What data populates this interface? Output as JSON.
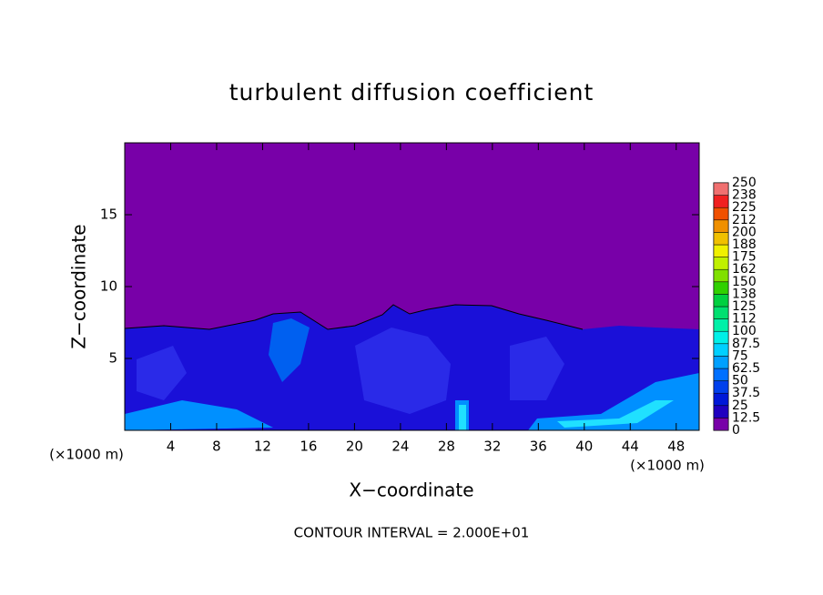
{
  "chart_data": {
    "type": "contour",
    "title": "turbulent diffusion coefficient",
    "x_label": "X−coordinate",
    "y_label": "Z−coordinate",
    "x_unit_label": "(×1000 m)",
    "y_unit_label": "(×1000 m)",
    "annotation": "CONTOUR INTERVAL = 2.000E+01",
    "xlim": [
      0,
      50
    ],
    "xticks": [
      4,
      8,
      12,
      16,
      20,
      24,
      28,
      32,
      36,
      40,
      44,
      48
    ],
    "ylim": [
      0,
      20
    ],
    "yticks": [
      5,
      10,
      15
    ],
    "colorbar": {
      "levels": [
        0,
        12.5,
        25,
        37.5,
        50,
        62.5,
        75,
        87.5,
        100,
        112,
        125,
        138,
        150,
        162,
        175,
        188,
        200,
        212,
        225,
        238,
        250
      ],
      "colors": [
        "#7800a8",
        "#2000c0",
        "#0018d8",
        "#0040ec",
        "#0070ff",
        "#00a0ff",
        "#00d0ff",
        "#00f0e8",
        "#00f0a8",
        "#00e070",
        "#00d040",
        "#30d000",
        "#80e000",
        "#c0f000",
        "#f0f000",
        "#f0c000",
        "#f09000",
        "#f05000",
        "#f02020",
        "#f07070"
      ]
    }
  }
}
